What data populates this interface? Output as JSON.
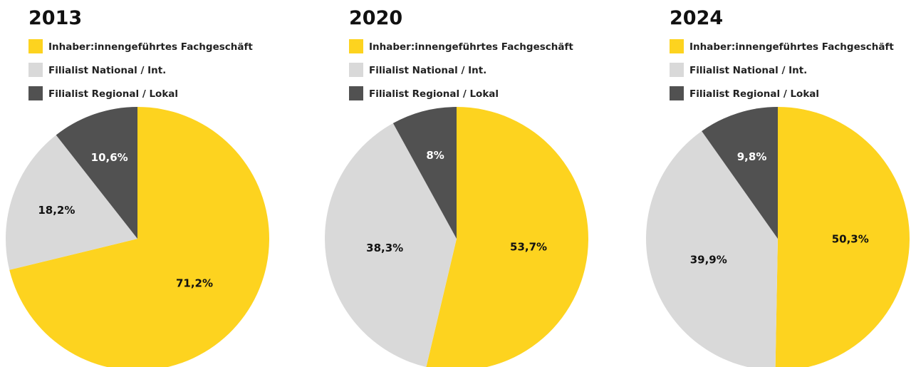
{
  "chart_data": [
    {
      "type": "pie",
      "title": "2013",
      "categories": [
        "Inhaber:innengeführtes Fachgeschäft",
        "Filialist National / Int.",
        "Filialist Regional / Lokal"
      ],
      "colors": [
        "#fdd31f",
        "#d9d9d9",
        "#515151"
      ],
      "values": [
        71.2,
        18.2,
        10.6
      ],
      "value_labels": [
        "71,2%",
        "18,2%",
        "10,6%"
      ]
    },
    {
      "type": "pie",
      "title": "2020",
      "categories": [
        "Inhaber:innengeführtes Fachgeschäft",
        "Filialist National / Int.",
        "Filialist Regional / Lokal"
      ],
      "colors": [
        "#fdd31f",
        "#d9d9d9",
        "#515151"
      ],
      "values": [
        53.7,
        38.3,
        8
      ],
      "value_labels": [
        "53,7%",
        "38,3%",
        "8%"
      ]
    },
    {
      "type": "pie",
      "title": "2024",
      "categories": [
        "Inhaber:innengeführtes Fachgeschäft",
        "Filialist National / Int.",
        "Filialist Regional / Lokal"
      ],
      "colors": [
        "#fdd31f",
        "#d9d9d9",
        "#515151"
      ],
      "values": [
        50.3,
        39.9,
        9.8
      ],
      "value_labels": [
        "50,3%",
        "39,9%",
        "9,8%"
      ]
    }
  ]
}
